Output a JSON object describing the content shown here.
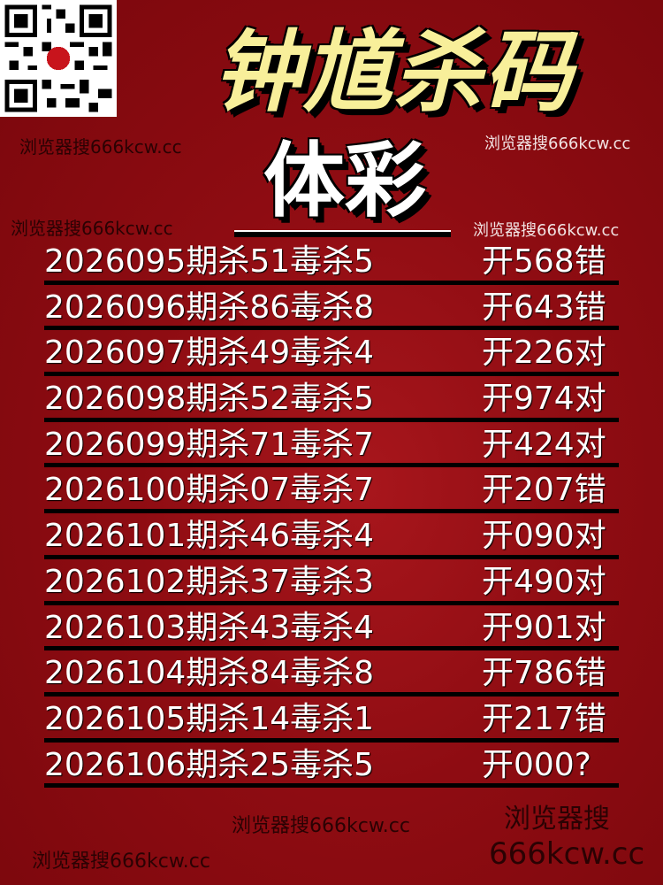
{
  "header": {
    "title": "钟馗杀码",
    "subtitle": "体彩"
  },
  "watermarks": [
    "浏览器搜666kcw.cc",
    "浏览器搜666kcw.cc",
    "浏览器搜666kcw.cc",
    "浏览器搜666kcw.cc",
    "浏览器搜666kcw.cc",
    "浏览器搜666kcw.cc"
  ],
  "watermark_big": {
    "line1": "浏览器搜",
    "line2": "666kcw.cc"
  },
  "rows": [
    {
      "left": "2026095期杀51毒杀5",
      "right": "开568错"
    },
    {
      "left": "2026096期杀86毒杀8",
      "right": "开643错"
    },
    {
      "left": "2026097期杀49毒杀4",
      "right": "开226对"
    },
    {
      "left": "2026098期杀52毒杀5",
      "right": "开974对"
    },
    {
      "left": "2026099期杀71毒杀7",
      "right": "开424对"
    },
    {
      "left": "2026100期杀07毒杀7",
      "right": "开207错"
    },
    {
      "left": "2026101期杀46毒杀4",
      "right": "开090对"
    },
    {
      "left": "2026102期杀37毒杀3",
      "right": "开490对"
    },
    {
      "left": "2026103期杀43毒杀4",
      "right": "开901对"
    },
    {
      "left": "2026104期杀84毒杀8",
      "right": "开786错"
    },
    {
      "left": "2026105期杀14毒杀1",
      "right": "开217错"
    },
    {
      "left": "2026106期杀25毒杀5",
      "right": "开000?"
    }
  ]
}
